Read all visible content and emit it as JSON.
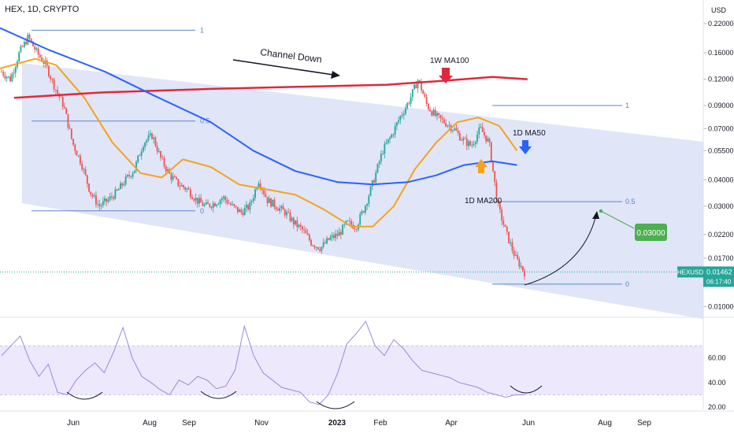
{
  "header": {
    "symbol_line": "HEX, 1D, CRYPTO",
    "currency": "USD"
  },
  "colors": {
    "channel_fill": "#d6dcf6",
    "ma50": "#2962ff",
    "ma200": "#f7a21b",
    "ma100w": "#e0283a",
    "rsi": "#9a8ad8",
    "rsi_band": "#ede8fb",
    "fib": "#5b86c9",
    "up_candle": "#26a69a",
    "down_candle": "#ef5350",
    "target": "#4caf50",
    "price_tag": "#26a69a"
  },
  "chart_data": {
    "type": "line",
    "scale": "log",
    "ylim": [
      0.0093,
      0.24
    ],
    "y_ticks": [
      "0.22000",
      "0.16000",
      "0.12000",
      "0.09000",
      "0.07000",
      "0.05500",
      "0.04000",
      "0.03000",
      "0.02200",
      "0.01700",
      "0.01000"
    ],
    "rsi_ticks": [
      "60.00",
      "40.00",
      "20.00"
    ],
    "x_ticks": [
      "Jun",
      "Aug",
      "Sep",
      "Nov",
      "2023",
      "Feb",
      "Apr",
      "Jun",
      "Aug",
      "Sep"
    ],
    "annotations": {
      "channel": "Channel Down",
      "ma100w": "1W MA100",
      "ma50": "1D MA50",
      "ma200": "1D MA200",
      "target": "0.03000",
      "last_price_symbol": "HEXUSD",
      "last_price": "0.01462",
      "countdown": "06:17:40"
    },
    "fib_levels_left": [
      {
        "label": "1",
        "value": 0.205
      },
      {
        "label": "0.5",
        "value": 0.076
      },
      {
        "label": "0",
        "value": 0.0285
      }
    ],
    "fib_levels_right": [
      {
        "label": "1",
        "value": 0.09
      },
      {
        "label": "0.5",
        "value": 0.0315
      },
      {
        "label": "0",
        "value": 0.0128
      }
    ],
    "series": [
      {
        "name": "1W MA100",
        "points": [
          [
            0.02,
            0.098
          ],
          [
            0.15,
            0.104
          ],
          [
            0.3,
            0.108
          ],
          [
            0.45,
            0.111
          ],
          [
            0.55,
            0.113
          ],
          [
            0.63,
            0.118
          ],
          [
            0.7,
            0.123
          ],
          [
            0.75,
            0.12
          ]
        ]
      },
      {
        "name": "1D MA50",
        "points": [
          [
            0,
            0.135
          ],
          [
            0.05,
            0.15
          ],
          [
            0.08,
            0.14
          ],
          [
            0.12,
            0.098
          ],
          [
            0.16,
            0.06
          ],
          [
            0.2,
            0.043
          ],
          [
            0.23,
            0.041
          ],
          [
            0.26,
            0.05
          ],
          [
            0.3,
            0.046
          ],
          [
            0.34,
            0.038
          ],
          [
            0.38,
            0.036
          ],
          [
            0.42,
            0.034
          ],
          [
            0.46,
            0.029
          ],
          [
            0.5,
            0.024
          ],
          [
            0.53,
            0.024
          ],
          [
            0.56,
            0.03
          ],
          [
            0.59,
            0.045
          ],
          [
            0.62,
            0.06
          ],
          [
            0.65,
            0.075
          ],
          [
            0.68,
            0.079
          ],
          [
            0.71,
            0.072
          ],
          [
            0.735,
            0.055
          ]
        ]
      },
      {
        "name": "1D MA200",
        "points": [
          [
            0,
            0.21
          ],
          [
            0.07,
            0.165
          ],
          [
            0.15,
            0.13
          ],
          [
            0.22,
            0.1
          ],
          [
            0.3,
            0.075
          ],
          [
            0.36,
            0.055
          ],
          [
            0.42,
            0.044
          ],
          [
            0.48,
            0.039
          ],
          [
            0.53,
            0.038
          ],
          [
            0.58,
            0.039
          ],
          [
            0.62,
            0.042
          ],
          [
            0.66,
            0.047
          ],
          [
            0.7,
            0.049
          ],
          [
            0.735,
            0.047
          ]
        ]
      },
      {
        "name": "RSI",
        "values": [
          62,
          70,
          78,
          58,
          45,
          55,
          32,
          30,
          42,
          50,
          56,
          48,
          65,
          85,
          60,
          45,
          40,
          34,
          30,
          42,
          38,
          45,
          42,
          35,
          37,
          50,
          86,
          62,
          48,
          42,
          36,
          34,
          32,
          24,
          22,
          30,
          48,
          72,
          80,
          90,
          70,
          62,
          75,
          68,
          58,
          50,
          48,
          46,
          44,
          40,
          38,
          36,
          32,
          30,
          28,
          30,
          30
        ]
      }
    ],
    "candle_path": [
      0.13,
      0.12,
      0.16,
      0.19,
      0.16,
      0.14,
      0.11,
      0.09,
      0.06,
      0.048,
      0.035,
      0.03,
      0.032,
      0.035,
      0.04,
      0.045,
      0.06,
      0.065,
      0.05,
      0.042,
      0.038,
      0.036,
      0.032,
      0.03,
      0.031,
      0.033,
      0.03,
      0.028,
      0.03,
      0.04,
      0.032,
      0.03,
      0.028,
      0.025,
      0.023,
      0.02,
      0.019,
      0.021,
      0.022,
      0.025,
      0.024,
      0.03,
      0.04,
      0.055,
      0.065,
      0.08,
      0.095,
      0.12,
      0.09,
      0.08,
      0.075,
      0.07,
      0.062,
      0.058,
      0.07,
      0.06,
      0.03,
      0.022,
      0.017,
      0.0146
    ]
  }
}
